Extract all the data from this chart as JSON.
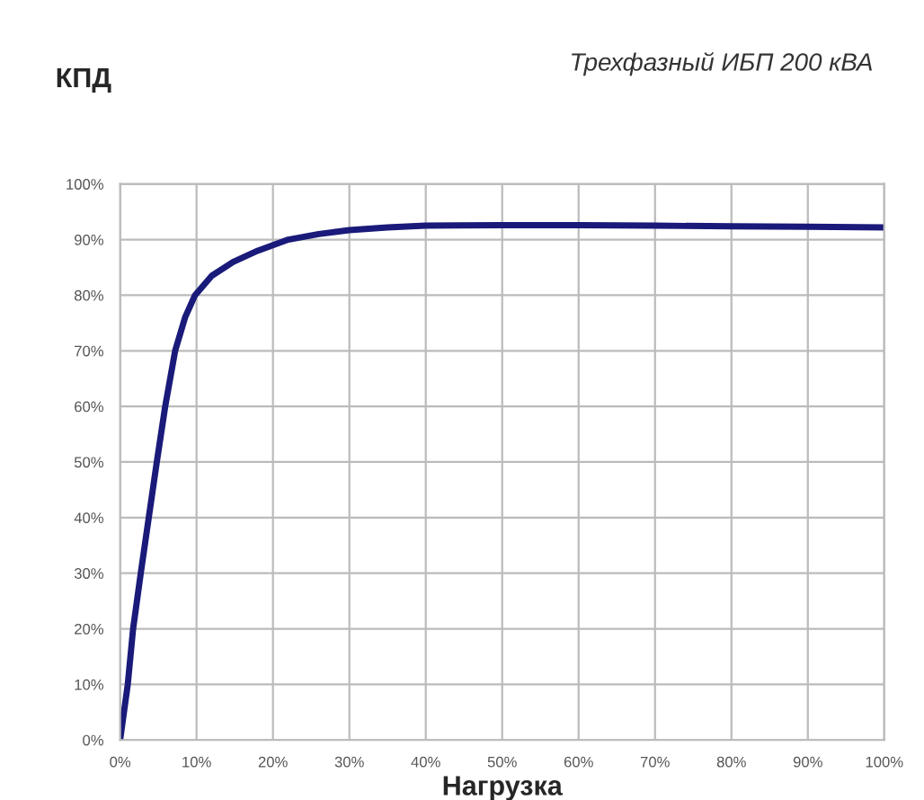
{
  "chart_data": {
    "type": "line",
    "title": "Трехфазный ИБП 200 кВА",
    "ylabel": "КПД",
    "xlabel": "Нагрузка",
    "series": [
      {
        "color": "#1a1a7a",
        "x": [
          0,
          1,
          1.7,
          2.7,
          3.75,
          4.8,
          5.9,
          7.2,
          8.5,
          9.8,
          12,
          14.8,
          18,
          22,
          26,
          30,
          35,
          40,
          50,
          60,
          70,
          80,
          90,
          100
        ],
        "values": [
          0,
          10,
          20,
          30,
          40,
          50,
          60,
          70,
          76,
          80,
          83.5,
          86,
          88,
          90,
          91,
          91.7,
          92.2,
          92.5,
          92.6,
          92.6,
          92.5,
          92.4,
          92.3,
          92.2
        ]
      }
    ],
    "xlim": [
      0,
      100
    ],
    "ylim": [
      0,
      100
    ],
    "xticks": [
      {
        "value": 0,
        "label": "0%"
      },
      {
        "value": 10,
        "label": "10%"
      },
      {
        "value": 20,
        "label": "20%"
      },
      {
        "value": 30,
        "label": "30%"
      },
      {
        "value": 40,
        "label": "40%"
      },
      {
        "value": 50,
        "label": "50%"
      },
      {
        "value": 60,
        "label": "60%"
      },
      {
        "value": 70,
        "label": "70%"
      },
      {
        "value": 80,
        "label": "80%"
      },
      {
        "value": 90,
        "label": "90%"
      },
      {
        "value": 100,
        "label": "100%"
      }
    ],
    "yticks": [
      {
        "value": 0,
        "label": "0%"
      },
      {
        "value": 10,
        "label": "10%"
      },
      {
        "value": 20,
        "label": "20%"
      },
      {
        "value": 30,
        "label": "30%"
      },
      {
        "value": 40,
        "label": "40%"
      },
      {
        "value": 50,
        "label": "50%"
      },
      {
        "value": 60,
        "label": "60%"
      },
      {
        "value": 70,
        "label": "70%"
      },
      {
        "value": 80,
        "label": "80%"
      },
      {
        "value": 90,
        "label": "90%"
      },
      {
        "value": 100,
        "label": "100%"
      }
    ],
    "grid": true,
    "line_style": "solid"
  }
}
